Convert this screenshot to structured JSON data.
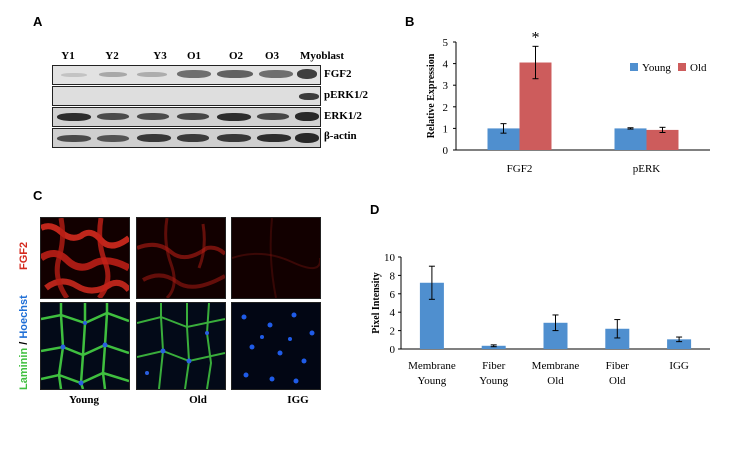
{
  "panels": {
    "a": "A",
    "b": "B",
    "c": "C",
    "d": "D"
  },
  "western_blot": {
    "lanes": [
      "Y1",
      "Y2",
      "Y3",
      "O1",
      "O2",
      "O3",
      "Myoblast"
    ],
    "rows": [
      "FGF2",
      "pERK1/2",
      "ERK1/2",
      "β-actin"
    ]
  },
  "immuno": {
    "row_labels": {
      "fgf2": "FGF2",
      "laminin": "Laminin",
      "slash": " / ",
      "hoechst": "Hoechst"
    },
    "columns": [
      "Young",
      "Old",
      "IGG"
    ],
    "colors": {
      "fgf2": "#d42a1e",
      "laminin": "#3fbf3f",
      "hoechst": "#1f6fd6"
    }
  },
  "chart_data": [
    {
      "type": "bar",
      "categories": [
        "FGF2",
        "pERK"
      ],
      "series": [
        {
          "name": "Young",
          "values": [
            1.0,
            1.0
          ],
          "errors": [
            0.22,
            0.03
          ],
          "color": "#4f8fcf"
        },
        {
          "name": "Old",
          "values": [
            4.05,
            0.93
          ],
          "errors": [
            0.75,
            0.12
          ],
          "color": "#cd5c5c"
        }
      ],
      "ylabel": "Relative Expression",
      "ylim": [
        0,
        5
      ],
      "yticks": [
        "0",
        "1",
        "2",
        "3",
        "4",
        "5"
      ],
      "annotations": [
        {
          "text": "*",
          "category": "FGF2",
          "series": "Old"
        }
      ],
      "legend": "top-right"
    },
    {
      "type": "bar",
      "categories": [
        [
          "Membrane",
          "Young"
        ],
        [
          "Fiber",
          "Young"
        ],
        [
          "Membrane",
          "Old"
        ],
        [
          "Fiber",
          "Old"
        ],
        [
          "IGG",
          ""
        ]
      ],
      "series": [
        {
          "values": [
            7.2,
            0.35,
            2.85,
            2.2,
            1.05
          ],
          "errors": [
            1.8,
            0.1,
            0.85,
            1.0,
            0.25
          ],
          "color": "#4f8fcf"
        }
      ],
      "ylabel": "Pixel Intensity",
      "ylim": [
        0,
        10
      ],
      "yticks": [
        "0",
        "2",
        "4",
        "6",
        "8",
        "10"
      ]
    }
  ]
}
